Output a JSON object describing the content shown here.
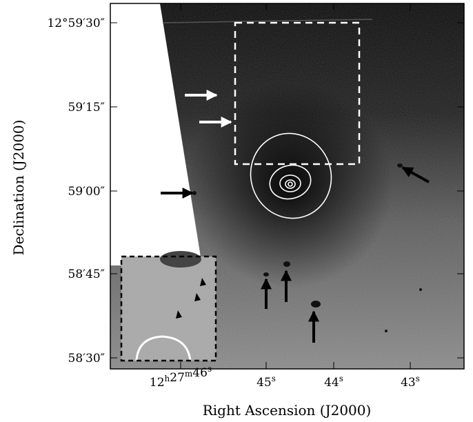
{
  "axes": {
    "x_label": "Right Ascension (J2000)",
    "y_label": "Declination (J2000)",
    "x_ticks": [
      "12h27m46s",
      "45s",
      "44s",
      "43s"
    ],
    "y_ticks": [
      "12°59′30″",
      "59′15″",
      "59′00″",
      "58′45″",
      "58′30″"
    ]
  }
}
